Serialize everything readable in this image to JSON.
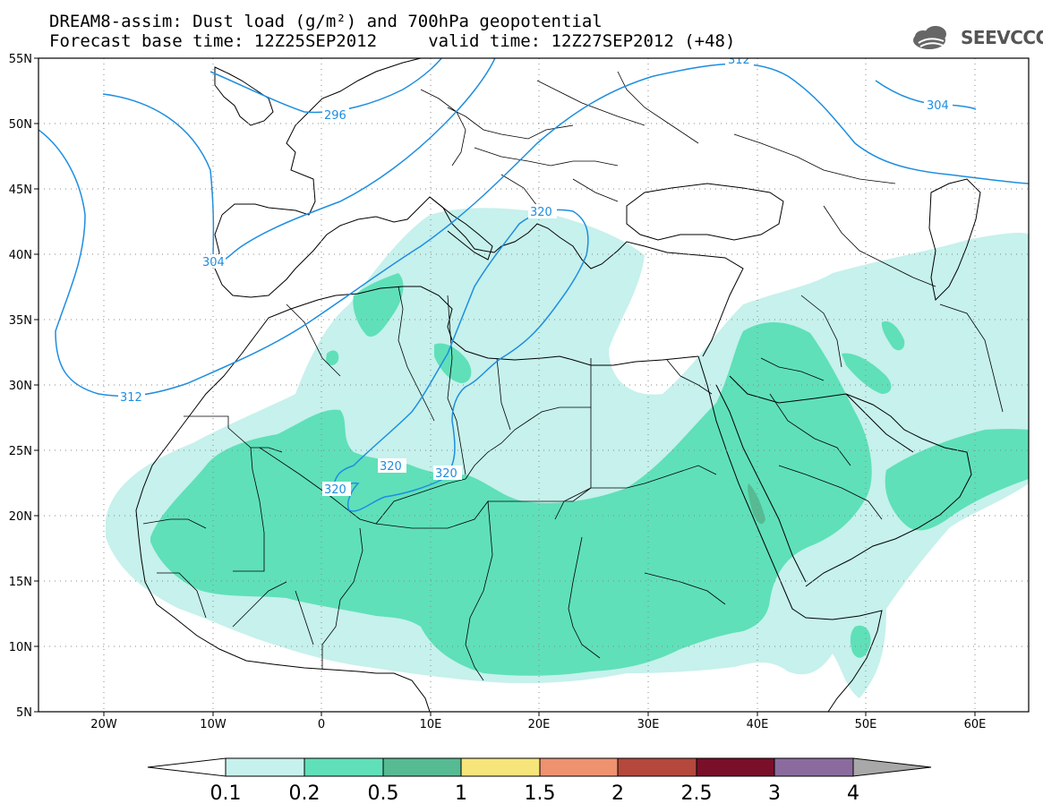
{
  "header": {
    "title_line1": "DREAM8-assim: Dust load (g/m²) and 700hPa geopotential",
    "title_line2": "Forecast base time: 12Z25SEP2012     valid time: 12Z27SEP2012 (+48)",
    "logo_text": "SEEVCCC"
  },
  "map": {
    "lon_labels": [
      "20W",
      "10W",
      "0",
      "10E",
      "20E",
      "30E",
      "40E",
      "50E",
      "60E"
    ],
    "lat_labels": [
      "55N",
      "50N",
      "45N",
      "40N",
      "35N",
      "30N",
      "25N",
      "20N",
      "15N",
      "10N",
      "5N"
    ],
    "contour_labels": [
      "296",
      "304",
      "312",
      "320",
      "320",
      "320",
      "320",
      "312",
      "304"
    ],
    "colors": {
      "dust_0_1": "#c6f1ec",
      "dust_0_2": "#5fe0b9",
      "dust_0_5": "#56bb93",
      "contour": "#1e8ee0"
    }
  },
  "colorbar": {
    "labels": [
      "0.1",
      "0.2",
      "0.5",
      "1",
      "1.5",
      "2",
      "2.5",
      "3",
      "4"
    ],
    "colors": [
      "#c6f1ec",
      "#5fe0b9",
      "#56bb93",
      "#f5e57a",
      "#ee9270",
      "#b5483c",
      "#7a0f2a",
      "#8b6b9e"
    ],
    "over_color": "#a8a8a8",
    "under_color": "#ffffff"
  }
}
